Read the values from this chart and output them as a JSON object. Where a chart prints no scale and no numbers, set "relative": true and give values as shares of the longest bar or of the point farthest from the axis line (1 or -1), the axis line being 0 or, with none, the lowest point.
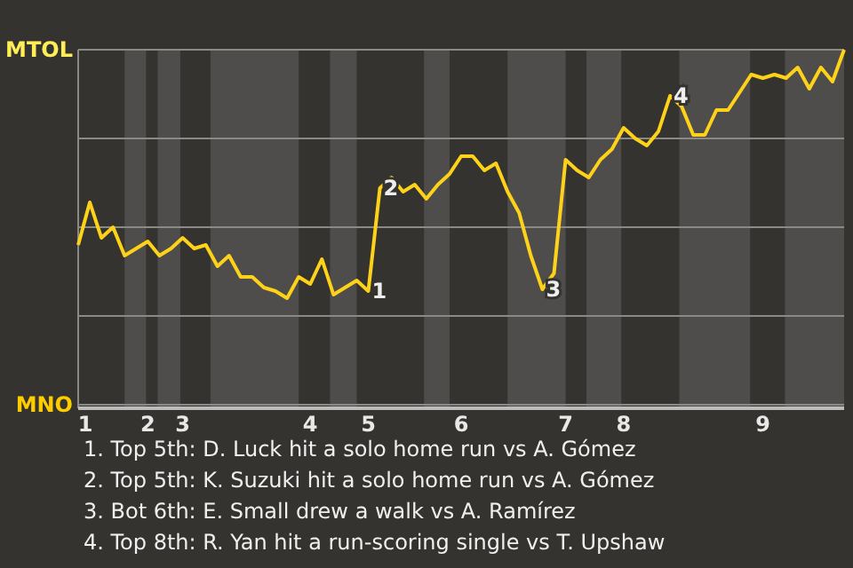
{
  "chart_data": {
    "type": "line",
    "relative": true,
    "categories": [
      "1",
      null,
      null,
      null,
      null,
      null,
      "2",
      null,
      null,
      "3",
      null,
      null,
      null,
      null,
      null,
      null,
      null,
      null,
      null,
      null,
      "4",
      null,
      null,
      null,
      null,
      "5",
      null,
      null,
      null,
      null,
      null,
      null,
      null,
      "6",
      null,
      null,
      null,
      null,
      null,
      null,
      null,
      null,
      "7",
      null,
      null,
      null,
      null,
      "8",
      null,
      null,
      null,
      null,
      null,
      null,
      null,
      null,
      null,
      null,
      null,
      "9",
      null,
      null,
      null,
      null,
      null,
      null,
      null
    ],
    "grid": "y",
    "line_style": "solid",
    "series": [
      {
        "color": "#ffd21a",
        "values": [
          0.45,
          0.57,
          0.47,
          0.5,
          0.42,
          0.44,
          0.46,
          0.42,
          0.44,
          0.47,
          0.44,
          0.45,
          0.39,
          0.42,
          0.36,
          0.36,
          0.33,
          0.32,
          0.3,
          0.36,
          0.34,
          0.41,
          0.31,
          0.33,
          0.35,
          0.32,
          0.61,
          0.64,
          0.6,
          0.62,
          0.58,
          0.62,
          0.65,
          0.7,
          0.7,
          0.66,
          0.68,
          0.6,
          0.54,
          0.42,
          0.325,
          0.37,
          0.69,
          0.66,
          0.64,
          0.69,
          0.72,
          0.78,
          0.75,
          0.73,
          0.77,
          0.87,
          0.84,
          0.76,
          0.76,
          0.83,
          0.83,
          0.88,
          0.93,
          0.92,
          0.93,
          0.92,
          0.95,
          0.89,
          0.95,
          0.91,
          1.0
        ]
      }
    ],
    "annotations": [
      "MTOL",
      "MNO",
      {
        "text": "1",
        "x": "5",
        "y": 0.32
      },
      {
        "text": "2",
        "y": 0.61
      },
      {
        "text": "3",
        "y": 0.325
      },
      {
        "text": "4",
        "y": 0.87
      },
      "1. Top 5th: D. Luck hit a solo home run vs A. Gómez",
      "2. Top 5th: K. Suzuki hit a solo home run vs A. Gómez",
      "3. Bot 6th: E. Small drew a walk vs A. Ramírez",
      "4. Top 8th: R. Yan hit a run-scoring single vs T. Upshaw"
    ]
  }
}
